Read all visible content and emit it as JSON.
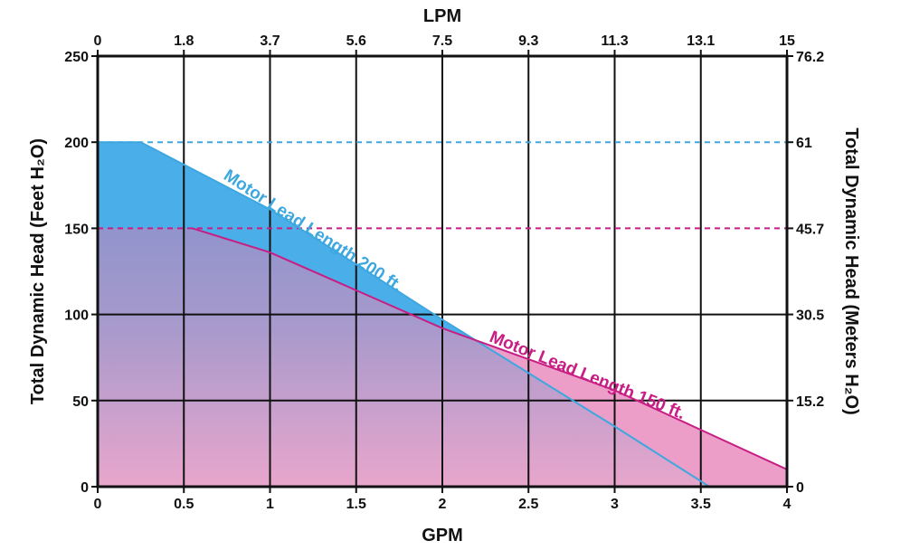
{
  "chart_data": {
    "type": "area",
    "title": "",
    "x_bottom": {
      "label": "GPM",
      "range": [
        0,
        4
      ],
      "ticks": [
        0,
        0.5,
        1,
        1.5,
        2,
        2.5,
        3,
        3.5,
        4
      ],
      "tick_labels": [
        "0",
        "0.5",
        "1",
        "1.5",
        "2",
        "2.5",
        "3",
        "3.5",
        "4"
      ]
    },
    "x_top": {
      "label": "LPM",
      "tick_labels": [
        "0",
        "1.8",
        "3.7",
        "5.6",
        "7.5",
        "9.3",
        "11.3",
        "13.1",
        "15"
      ]
    },
    "y_left": {
      "label": "Total Dynamic Head (Feet H₂O)",
      "range": [
        0,
        250
      ],
      "ticks": [
        0,
        50,
        100,
        150,
        200,
        250
      ],
      "tick_labels": [
        "0",
        "50",
        "100",
        "150",
        "200",
        "250"
      ]
    },
    "y_right": {
      "label": "Total Dynamic Head (Meters H₂O)",
      "ticks": [
        0,
        50,
        100,
        150,
        200,
        250
      ],
      "tick_labels": [
        "0",
        "15.2",
        "30.5",
        "45.7",
        "61",
        "76.2"
      ]
    },
    "grid": true,
    "series": [
      {
        "name": "Motor Lead Length 200 ft.",
        "color": "#4aaee8",
        "line_color": "#3da7e0",
        "max_head": 200,
        "points": [
          [
            0,
            200
          ],
          [
            0.25,
            200
          ],
          [
            1.0,
            161
          ],
          [
            2.0,
            97
          ],
          [
            3.0,
            35
          ],
          [
            3.55,
            0
          ]
        ]
      },
      {
        "name": "Motor Lead Length 150 ft.",
        "color": "#ec9ec8",
        "line_color": "#c81e84",
        "max_head": 150,
        "points": [
          [
            0.55,
            150
          ],
          [
            1.0,
            136
          ],
          [
            2.0,
            92
          ],
          [
            3.0,
            56
          ],
          [
            4.0,
            10
          ]
        ]
      }
    ]
  }
}
